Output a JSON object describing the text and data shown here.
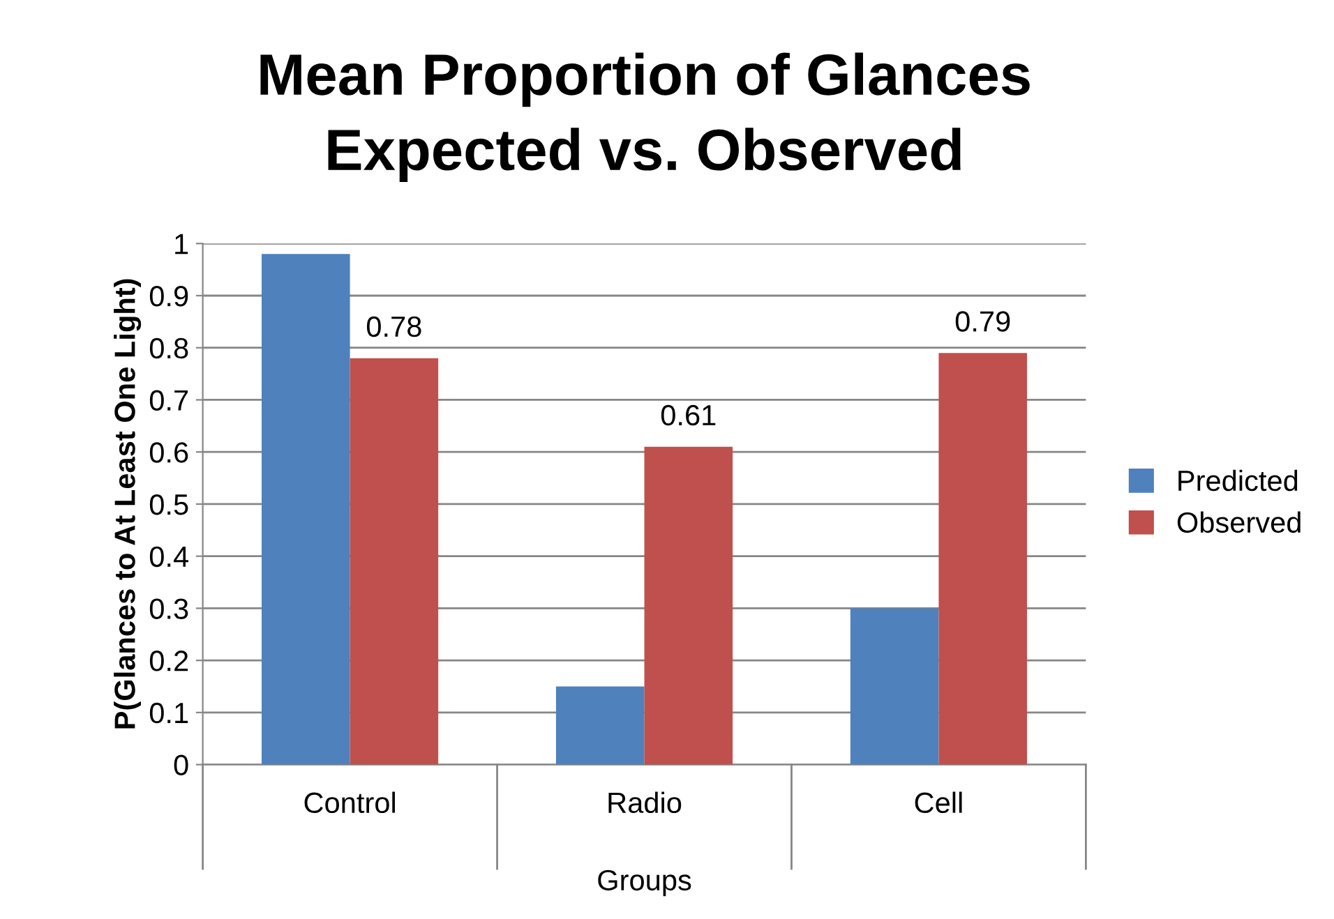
{
  "chart_data": {
    "type": "bar",
    "title": "Mean Proportion of Glances\nExpected vs. Observed",
    "xlabel": "Groups",
    "ylabel": "P(Glances to At Least One Light)",
    "categories": [
      "Control",
      "Radio",
      "Cell"
    ],
    "series": [
      {
        "name": "Predicted",
        "color": "#4f81bd",
        "values": [
          0.98,
          0.15,
          0.3
        ]
      },
      {
        "name": "Observed",
        "color": "#c0504d",
        "values": [
          0.78,
          0.61,
          0.79
        ],
        "value_labels": [
          "0.78",
          "0.61",
          "0.79"
        ]
      }
    ],
    "ylim": [
      0,
      1
    ],
    "yticks": [
      0,
      0.1,
      0.2,
      0.3,
      0.4,
      0.5,
      0.6,
      0.7,
      0.8,
      0.9,
      1
    ],
    "grid": "y",
    "legend": "right"
  }
}
